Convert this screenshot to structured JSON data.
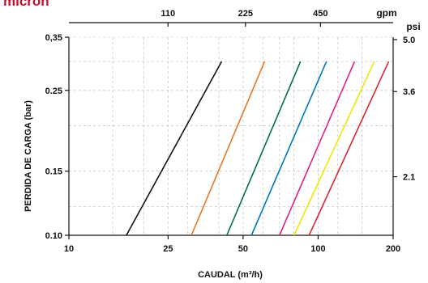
{
  "brand": {
    "name": "micron",
    "color": "#c8102e"
  },
  "chart_data": {
    "type": "line",
    "title": "",
    "xlabel": "CAUDAL (m³/h)",
    "ylabel": "PERDIDA DE CARGA  (bar)",
    "x_scale": "log",
    "y_scale": "log",
    "xlim": [
      10,
      200
    ],
    "ylim": [
      0.1,
      0.35
    ],
    "x_ticks": [
      10,
      25,
      50,
      100,
      200
    ],
    "x_tick_labels": [
      "10",
      "25",
      "50",
      "100",
      "200"
    ],
    "y_ticks": [
      0.1,
      0.15,
      0.25,
      0.35
    ],
    "y_tick_labels": [
      "0.10",
      "0.15",
      "0.25",
      "0,35"
    ],
    "x_top_unit": "gpm",
    "x_top_ticks_gpm": [
      110,
      225,
      450
    ],
    "x_top_tick_labels": [
      "110",
      "225",
      "450"
    ],
    "y_right_unit": "psi",
    "y_right_ticks_psi": [
      2.1,
      3.6,
      5.0
    ],
    "y_right_tick_labels": [
      "2.1",
      "3.6",
      "5.0"
    ],
    "grid": true,
    "series": [
      {
        "color": "#111111",
        "x": [
          17,
          41
        ],
        "y": [
          0.1,
          0.3
        ]
      },
      {
        "color": "#e87722",
        "x": [
          31,
          61
        ],
        "y": [
          0.1,
          0.3
        ]
      },
      {
        "color": "#00704a",
        "x": [
          43,
          85
        ],
        "y": [
          0.1,
          0.3
        ]
      },
      {
        "color": "#0077c0",
        "x": [
          54,
          108
        ],
        "y": [
          0.1,
          0.3
        ]
      },
      {
        "color": "#e0218a",
        "x": [
          70,
          140
        ],
        "y": [
          0.1,
          0.3
        ]
      },
      {
        "color": "#f2e600",
        "x": [
          80,
          168
        ],
        "y": [
          0.1,
          0.3
        ]
      },
      {
        "color": "#d7282f",
        "x": [
          92,
          192
        ],
        "y": [
          0.1,
          0.3
        ]
      }
    ]
  }
}
